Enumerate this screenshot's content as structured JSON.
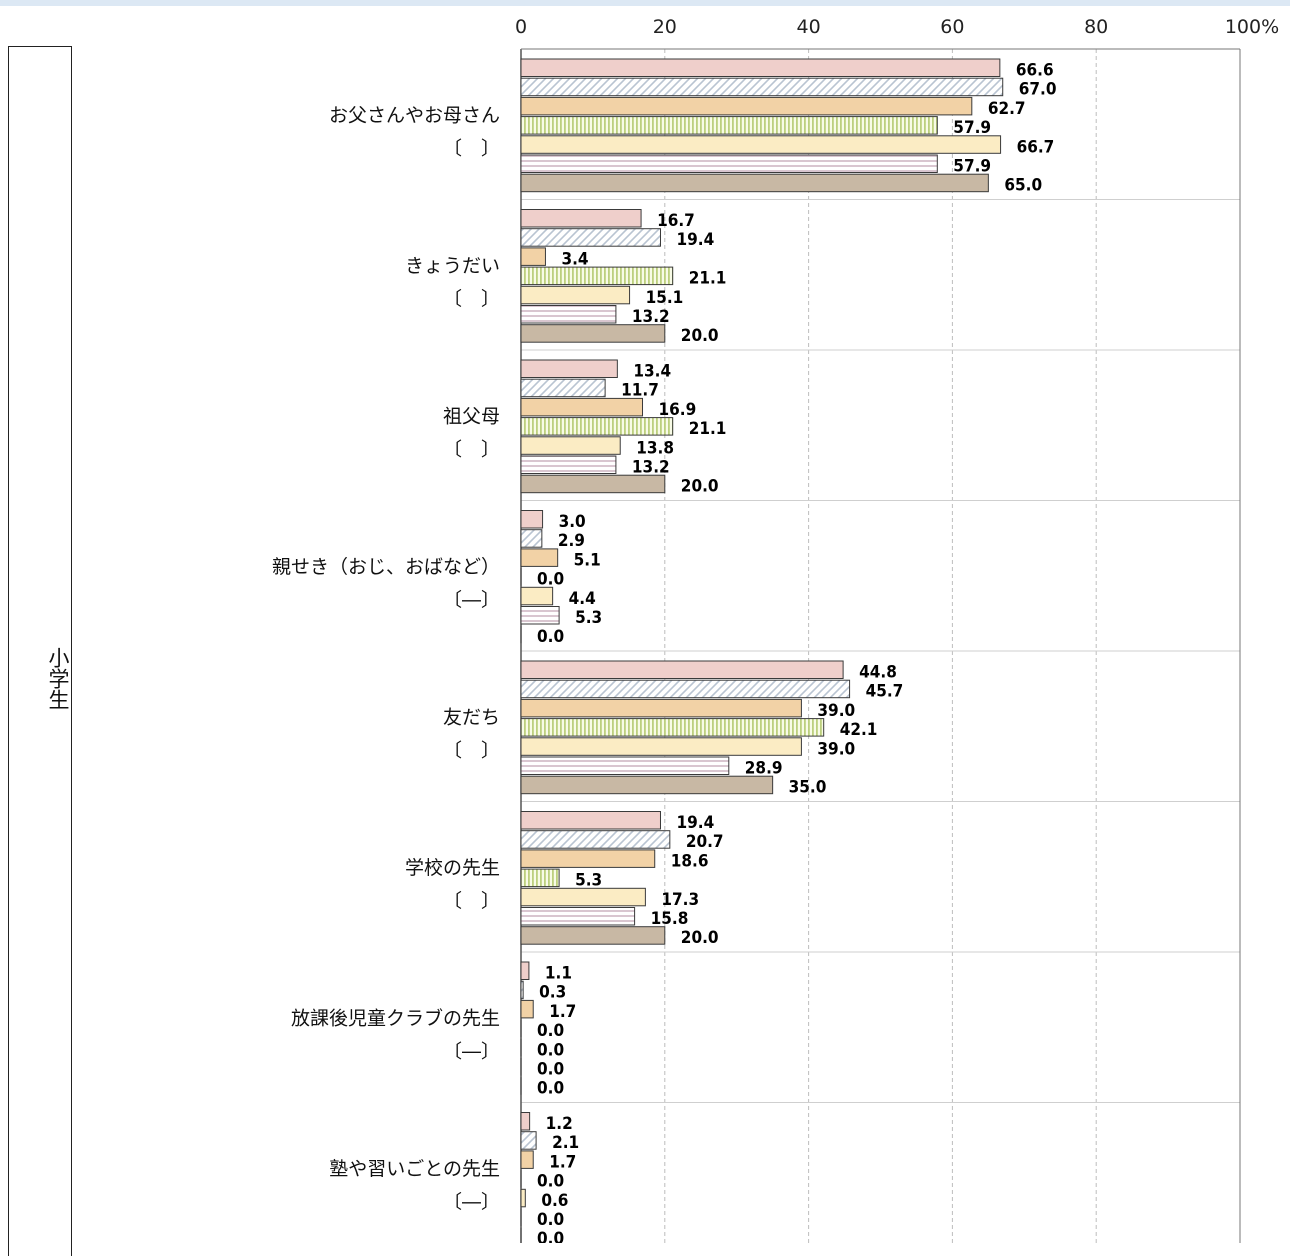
{
  "side_label": "小学生",
  "chart_data": {
    "type": "bar",
    "orientation": "horizontal",
    "xlim": [
      0,
      100
    ],
    "x_ticks": [
      "0",
      "20",
      "40",
      "60",
      "80",
      "100%"
    ],
    "grid": true,
    "categories": [
      {
        "label": "お父さんやお母さん",
        "marker": "〔　〕"
      },
      {
        "label": "きょうだい",
        "marker": "〔　〕"
      },
      {
        "label": "祖父母",
        "marker": "〔　〕"
      },
      {
        "label": "親せき（おじ、おばなど）",
        "marker": "〔―〕"
      },
      {
        "label": "友だち",
        "marker": "〔　〕"
      },
      {
        "label": "学校の先生",
        "marker": "〔　〕"
      },
      {
        "label": "放課後児童クラブの先生",
        "marker": "〔―〕"
      },
      {
        "label": "塾や習いごとの先生",
        "marker": "〔―〕"
      }
    ],
    "series": [
      {
        "values": [
          66.6,
          16.7,
          13.4,
          3.0,
          44.8,
          19.4,
          1.1,
          1.2
        ],
        "labels": [
          "66.6",
          "16.7",
          "13.4",
          "3.0",
          "44.8",
          "19.4",
          "1.1",
          "1.2"
        ],
        "color": "#efcfcb",
        "pattern": "solid"
      },
      {
        "values": [
          67.0,
          19.4,
          11.7,
          2.9,
          45.7,
          20.7,
          0.3,
          2.1
        ],
        "labels": [
          "67.0",
          "19.4",
          "11.7",
          "2.9",
          "45.7",
          "20.7",
          "0.3",
          "2.1"
        ],
        "color": "#c9d3de",
        "pattern": "diagonal"
      },
      {
        "values": [
          62.7,
          3.4,
          16.9,
          5.1,
          39.0,
          18.6,
          1.7,
          1.7
        ],
        "labels": [
          "62.7",
          "3.4",
          "16.9",
          "5.1",
          "39.0",
          "18.6",
          "1.7",
          "1.7"
        ],
        "color": "#f2d2a6",
        "pattern": "solid"
      },
      {
        "values": [
          57.9,
          21.1,
          21.1,
          0.0,
          42.1,
          5.3,
          0.0,
          0.0
        ],
        "labels": [
          "57.9",
          "21.1",
          "21.1",
          "0.0",
          "42.1",
          "5.3",
          "0.0",
          "0.0"
        ],
        "color": "#c5d58a",
        "pattern": "vertical"
      },
      {
        "values": [
          66.7,
          15.1,
          13.8,
          4.4,
          39.0,
          17.3,
          0.0,
          0.6
        ],
        "labels": [
          "66.7",
          "15.1",
          "13.8",
          "4.4",
          "39.0",
          "17.3",
          "0.0",
          "0.6"
        ],
        "color": "#fbecc4",
        "pattern": "solid"
      },
      {
        "values": [
          57.9,
          13.2,
          13.2,
          5.3,
          28.9,
          15.8,
          0.0,
          0.0
        ],
        "labels": [
          "57.9",
          "13.2",
          "13.2",
          "5.3",
          "28.9",
          "15.8",
          "0.0",
          "0.0"
        ],
        "color": "#d8c8cf",
        "pattern": "horizontal"
      },
      {
        "values": [
          65.0,
          20.0,
          20.0,
          0.0,
          35.0,
          20.0,
          0.0,
          0.0
        ],
        "labels": [
          "65.0",
          "20.0",
          "20.0",
          "0.0",
          "35.0",
          "20.0",
          "0.0",
          "0.0"
        ],
        "color": "#c8b8a4",
        "pattern": "solid"
      }
    ]
  }
}
